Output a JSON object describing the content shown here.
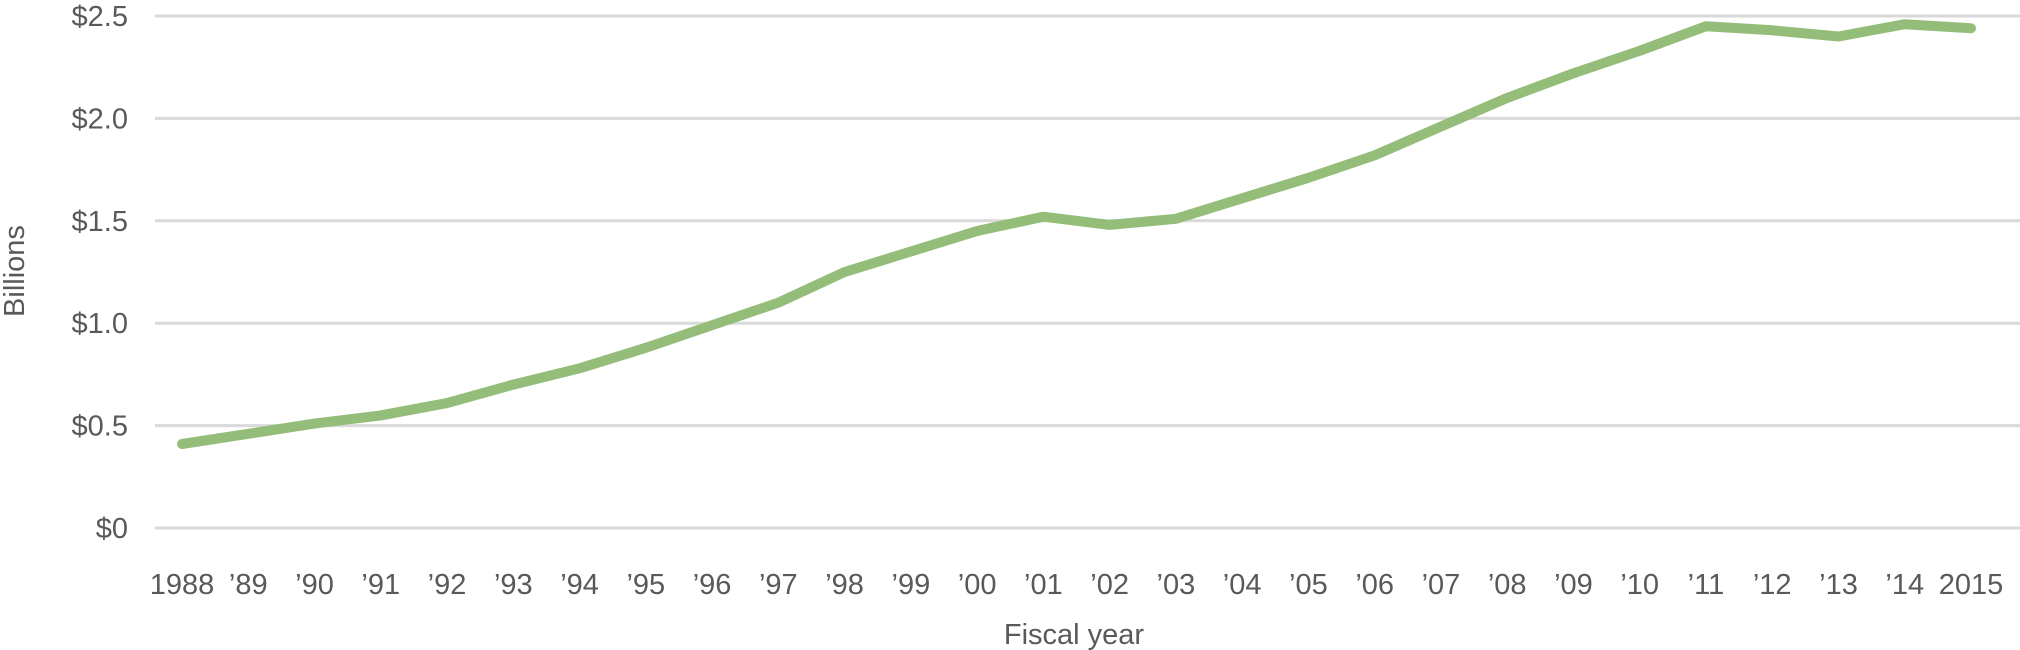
{
  "chart_data": {
    "type": "line",
    "title": "",
    "xlabel": "Fiscal year",
    "ylabel": "Billions",
    "x": [
      "1988",
      "’89",
      "’90",
      "’91",
      "’92",
      "’93",
      "’94",
      "’95",
      "’96",
      "’97",
      "’98",
      "’99",
      "’00",
      "’01",
      "’02",
      "’03",
      "’04",
      "’05",
      "’06",
      "’07",
      "’08",
      "’09",
      "’10",
      "’11",
      "’12",
      "’13",
      "’14",
      "2015"
    ],
    "series": [
      {
        "values": [
          0.41,
          0.46,
          0.51,
          0.55,
          0.61,
          0.7,
          0.78,
          0.88,
          0.99,
          1.1,
          1.25,
          1.35,
          1.45,
          1.52,
          1.48,
          1.51,
          1.61,
          1.71,
          1.82,
          1.96,
          2.1,
          2.22,
          2.33,
          2.45,
          2.43,
          2.4,
          2.46,
          2.44
        ]
      }
    ],
    "ylim": [
      0,
      2.5
    ],
    "yticks": [
      0,
      0.5,
      1.0,
      1.5,
      2.0,
      2.5
    ],
    "ytick_labels": [
      "$0",
      "$0.5",
      "$1.0",
      "$1.5",
      "$2.0",
      "$2.5"
    ],
    "grid": true,
    "legend": "none",
    "colors": {
      "series": "#93bd79",
      "grid": "#d9d9d9",
      "text": "#595959"
    }
  }
}
